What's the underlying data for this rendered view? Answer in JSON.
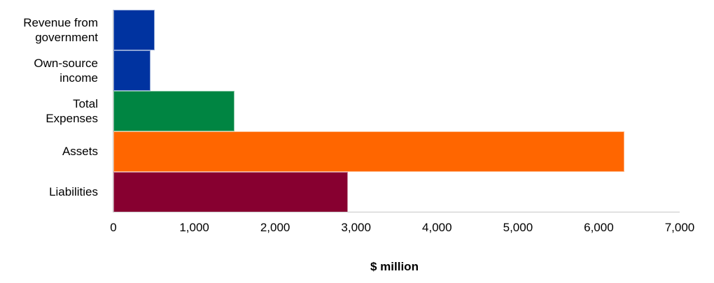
{
  "chart_data": {
    "type": "bar",
    "orientation": "horizontal",
    "title": "",
    "xlabel": "$ million",
    "ylabel": "",
    "xlim": [
      0,
      7000
    ],
    "x_ticks": [
      "0",
      "1,000",
      "2,000",
      "3,000",
      "4,000",
      "5,000",
      "6,000",
      "7,000"
    ],
    "grid": false,
    "legend": null,
    "categories": [
      "Revenue from government",
      "Own-source income",
      "Total Expenses",
      "Assets",
      "Liabilities"
    ],
    "category_lines": [
      [
        "Revenue from",
        "government"
      ],
      [
        "Own-source",
        "income"
      ],
      [
        "Total",
        "Expenses"
      ],
      [
        "Assets"
      ],
      [
        "Liabilities"
      ]
    ],
    "values": [
      510,
      460,
      1500,
      6315,
      2900
    ],
    "colors": [
      "#0033a0",
      "#0033a0",
      "#008542",
      "#ff6600",
      "#870030"
    ]
  }
}
